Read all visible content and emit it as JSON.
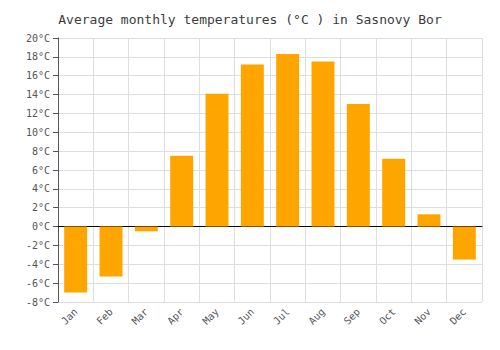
{
  "chart_data": {
    "type": "bar",
    "title": "Average monthly temperatures (°C ) in Sasnovy Bor",
    "categories": [
      "Jan",
      "Feb",
      "Mar",
      "Apr",
      "May",
      "Jun",
      "Jul",
      "Aug",
      "Sep",
      "Oct",
      "Nov",
      "Dec"
    ],
    "values": [
      -7.0,
      -5.3,
      -0.5,
      7.5,
      14.1,
      17.2,
      18.3,
      17.5,
      13.0,
      7.2,
      1.3,
      -3.5
    ],
    "color": "#FFA500",
    "ylim": [
      -8,
      20
    ],
    "yticks": [
      {
        "value": -8,
        "label": "-8°C"
      },
      {
        "value": -6,
        "label": "-6°C"
      },
      {
        "value": -4,
        "label": "-4°C"
      },
      {
        "value": -2,
        "label": "-2°C"
      },
      {
        "value": 0,
        "label": "0°C"
      },
      {
        "value": 2,
        "label": "2°C"
      },
      {
        "value": 4,
        "label": "4°C"
      },
      {
        "value": 6,
        "label": "6°C"
      },
      {
        "value": 8,
        "label": "8°C"
      },
      {
        "value": 10,
        "label": "10°C"
      },
      {
        "value": 12,
        "label": "12°C"
      },
      {
        "value": 14,
        "label": "14°C"
      },
      {
        "value": 16,
        "label": "16°C"
      },
      {
        "value": 18,
        "label": "18°C"
      },
      {
        "value": 20,
        "label": "20°C"
      }
    ],
    "grid": true
  }
}
